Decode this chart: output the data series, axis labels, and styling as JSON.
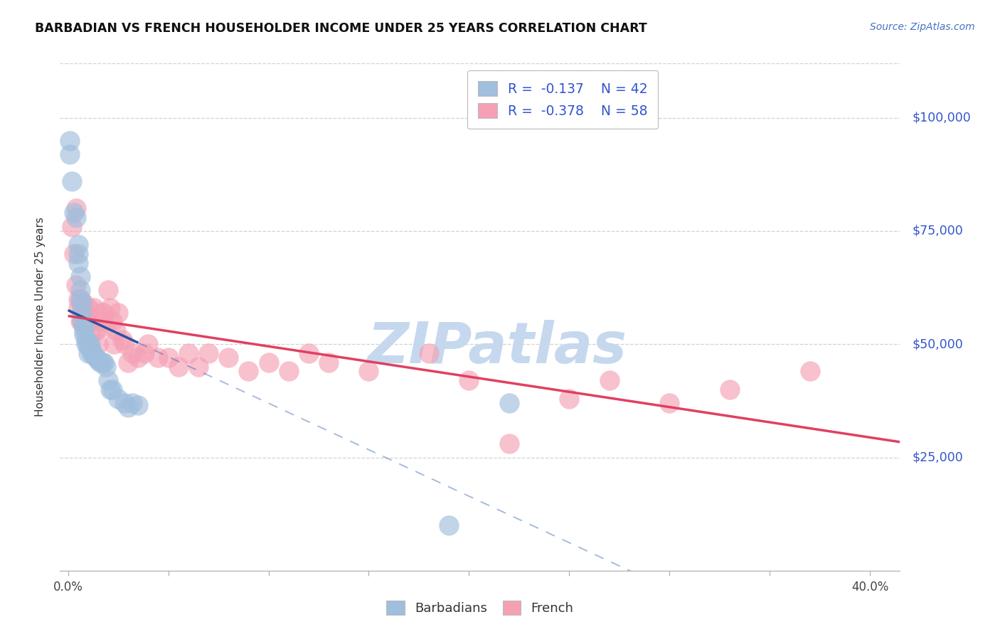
{
  "title": "BARBADIAN VS FRENCH HOUSEHOLDER INCOME UNDER 25 YEARS CORRELATION CHART",
  "source": "Source: ZipAtlas.com",
  "ylabel": "Householder Income Under 25 years",
  "xlim": [
    -0.004,
    0.415
  ],
  "ylim": [
    0,
    112000
  ],
  "yticks": [
    25000,
    50000,
    75000,
    100000
  ],
  "ytick_labels": [
    "$25,000",
    "$50,000",
    "$75,000",
    "$100,000"
  ],
  "xtick_positions": [
    0.0,
    0.05,
    0.1,
    0.15,
    0.2,
    0.25,
    0.3,
    0.35,
    0.4
  ],
  "background_color": "#ffffff",
  "grid_color": "#cccccc",
  "barbadian_color": "#a0bedd",
  "french_color": "#f5a0b5",
  "barbadian_line_color": "#2255a0",
  "french_line_color": "#e04060",
  "watermark": "ZIPatlas",
  "watermark_color": "#c5d8ee",
  "legend_barb_R": "-0.137",
  "legend_barb_N": "42",
  "legend_french_R": "-0.378",
  "legend_french_N": "58",
  "barbadian_x": [
    0.001,
    0.001,
    0.002,
    0.003,
    0.004,
    0.005,
    0.005,
    0.005,
    0.006,
    0.006,
    0.007,
    0.007,
    0.007,
    0.008,
    0.008,
    0.009,
    0.009,
    0.01,
    0.01,
    0.011,
    0.011,
    0.012,
    0.012,
    0.013,
    0.014,
    0.015,
    0.016,
    0.017,
    0.018,
    0.019,
    0.02,
    0.021,
    0.022,
    0.025,
    0.028,
    0.03,
    0.032,
    0.035,
    0.19,
    0.22,
    0.006,
    0.008
  ],
  "barbadian_y": [
    95000,
    92000,
    86000,
    79000,
    78000,
    72000,
    70000,
    68000,
    65000,
    62000,
    59000,
    57000,
    55000,
    54000,
    53000,
    51000,
    50000,
    49500,
    48000,
    50000,
    49000,
    48500,
    48000,
    47500,
    47000,
    46500,
    46000,
    46000,
    46000,
    45000,
    42000,
    40000,
    40000,
    38000,
    37000,
    36000,
    37000,
    36500,
    10000,
    37000,
    60000,
    52000
  ],
  "french_x": [
    0.002,
    0.003,
    0.004,
    0.004,
    0.005,
    0.005,
    0.006,
    0.006,
    0.007,
    0.007,
    0.008,
    0.008,
    0.009,
    0.01,
    0.01,
    0.011,
    0.012,
    0.013,
    0.014,
    0.015,
    0.016,
    0.017,
    0.018,
    0.019,
    0.02,
    0.021,
    0.022,
    0.023,
    0.024,
    0.025,
    0.027,
    0.028,
    0.03,
    0.032,
    0.035,
    0.038,
    0.04,
    0.045,
    0.05,
    0.055,
    0.06,
    0.065,
    0.07,
    0.08,
    0.09,
    0.1,
    0.11,
    0.12,
    0.13,
    0.15,
    0.18,
    0.2,
    0.22,
    0.25,
    0.27,
    0.3,
    0.33,
    0.37
  ],
  "french_y": [
    76000,
    70000,
    63000,
    80000,
    58000,
    60000,
    55000,
    60000,
    58000,
    55000,
    59000,
    57000,
    55000,
    56000,
    58000,
    52000,
    55000,
    58000,
    53000,
    50000,
    57000,
    55000,
    57000,
    54000,
    62000,
    58000,
    55000,
    50000,
    53000,
    57000,
    51000,
    50000,
    46000,
    48000,
    47000,
    48000,
    50000,
    47000,
    47000,
    45000,
    48000,
    45000,
    48000,
    47000,
    44000,
    46000,
    44000,
    48000,
    46000,
    44000,
    48000,
    42000,
    28000,
    38000,
    42000,
    37000,
    40000,
    44000
  ]
}
